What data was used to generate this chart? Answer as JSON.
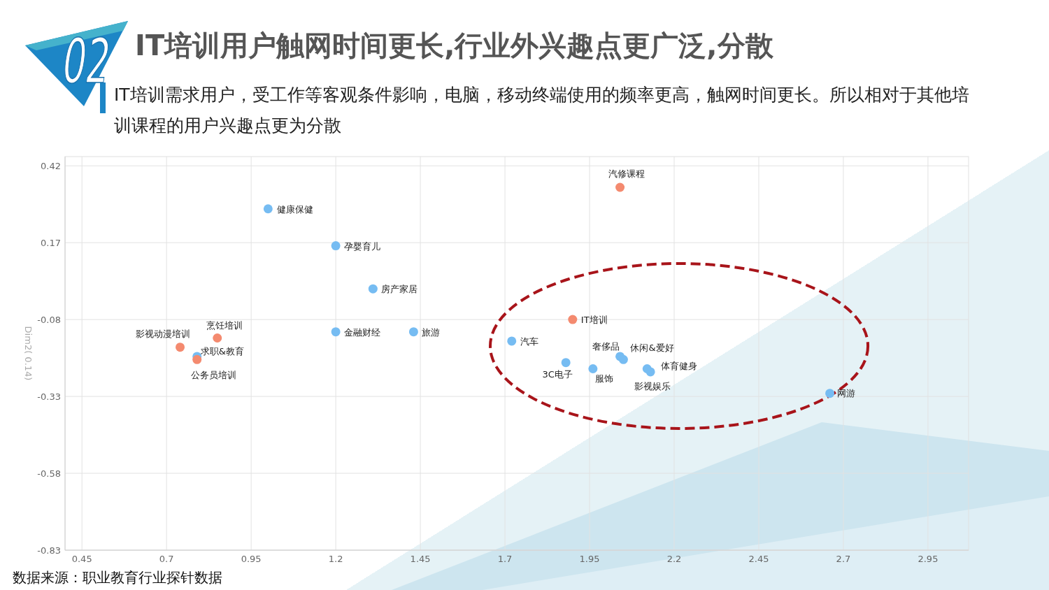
{
  "chart_data": {
    "type": "scatter",
    "title": "IT培训用户触网时间更长,行业外兴趣点更广泛,分散",
    "subtitle": "IT培训需求用户，受工作等客观条件影响，电脑，移动终端使用的频率更高，触网时间更长。所以相对于其他培训课程的用户兴趣点更为分散",
    "ylabel": "Dim2( 0.14)",
    "series": [
      {
        "color": "#76bcf2",
        "x": [
          1.0,
          1.2,
          1.31,
          1.2,
          1.43,
          0.79,
          1.72,
          1.88,
          1.96,
          2.04,
          2.05,
          2.12,
          2.13,
          2.66
        ],
        "values": [
          0.28,
          0.16,
          0.02,
          -0.12,
          -0.12,
          -0.2,
          -0.15,
          -0.22,
          -0.24,
          -0.2,
          -0.21,
          -0.24,
          -0.25,
          -0.32
        ]
      },
      {
        "color": "#f48a6f",
        "x": [
          2.04,
          1.9,
          0.85,
          0.74,
          0.79
        ],
        "values": [
          0.35,
          -0.08,
          -0.14,
          -0.17,
          -0.21
        ]
      }
    ],
    "xlim": [
      0.4,
      3.07
    ],
    "ylim": [
      -0.83,
      0.45
    ],
    "xticks": [
      0.45,
      0.7,
      0.95,
      1.2,
      1.45,
      1.7,
      1.95,
      2.2,
      2.45,
      2.7,
      2.95
    ],
    "yticks": [
      -0.83,
      -0.58,
      -0.33,
      -0.08,
      0.17,
      0.42
    ],
    "grid": true,
    "marker": "circle",
    "annotations": [
      "02",
      "数据来源：职业教育行业探针数据",
      {
        "text": "健康保健",
        "x": 1.0,
        "y": 0.28
      },
      {
        "text": "孕婴育儿",
        "x": 1.2,
        "y": 0.16
      },
      {
        "text": "房产家居",
        "x": 1.31,
        "y": 0.02
      },
      {
        "text": "金融财经",
        "x": 1.2,
        "y": -0.12
      },
      {
        "text": "旅游",
        "x": 1.43,
        "y": -0.12
      },
      {
        "text": "求职&教育",
        "x": 0.79,
        "y": -0.2
      },
      {
        "text": "汽车",
        "x": 1.72,
        "y": -0.15
      },
      {
        "text": "3C电子",
        "x": 1.88,
        "y": -0.22
      },
      {
        "text": "服饰",
        "x": 1.96,
        "y": -0.24
      },
      {
        "text": "奢侈品",
        "x": 2.04,
        "y": -0.2
      },
      {
        "text": "休闲&爱好",
        "x": 2.05,
        "y": -0.21
      },
      {
        "text": "体育健身",
        "x": 2.12,
        "y": -0.24
      },
      {
        "text": "影视娱乐",
        "x": 2.13,
        "y": -0.25
      },
      {
        "text": "网游",
        "x": 2.66,
        "y": -0.32
      },
      {
        "text": "汽修课程",
        "x": 2.04,
        "y": 0.35
      },
      {
        "text": "IT培训",
        "x": 1.9,
        "y": -0.08
      },
      {
        "text": "烹饪培训",
        "x": 0.85,
        "y": -0.14
      },
      {
        "text": "影视动漫培训",
        "x": 0.74,
        "y": -0.17
      },
      {
        "text": "公务员培训",
        "x": 0.79,
        "y": -0.21
      }
    ]
  }
}
